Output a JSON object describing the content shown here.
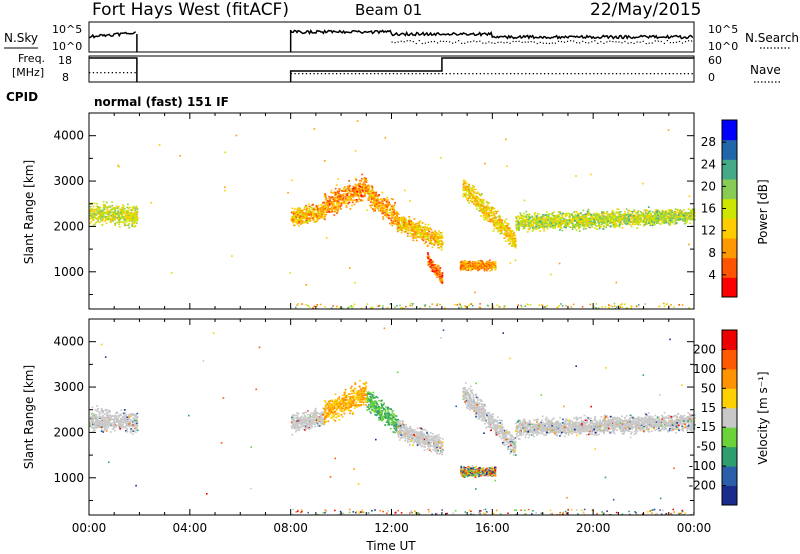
{
  "header": {
    "station": "Fort Hays West (fitACF)",
    "beam": "Beam 01",
    "date": "22/May/2015"
  },
  "noise_panel": {
    "left_label": "N.Sky",
    "right_label": "N.Search",
    "left_ticks": [
      "10^5",
      "10^0"
    ],
    "right_ticks": [
      "10^5",
      "10^0"
    ]
  },
  "freq_panel": {
    "left_label_1": "Freq.",
    "left_label_2": "[MHz]",
    "right_label": "Nave",
    "left_ticks": [
      "18",
      "8"
    ],
    "right_ticks": [
      "60",
      "0"
    ]
  },
  "cpid": {
    "label": "CPID",
    "mode": "normal (fast) 151 IF"
  },
  "power_colorbar": {
    "label": "Power [dB]",
    "ticks": [
      "28",
      "24",
      "20",
      "16",
      "12",
      "8",
      "4"
    ],
    "colors": [
      "#ff0000",
      "#ff5500",
      "#ff9900",
      "#ffcc00",
      "#cce600",
      "#88cc55",
      "#44aa88",
      "#2266aa",
      "#0000ff"
    ]
  },
  "velocity_colorbar": {
    "label": "Velocity [m s⁻¹]",
    "ticks": [
      "200",
      "100",
      "50",
      "15",
      "-15",
      "-50",
      "-100",
      "-200"
    ],
    "colors": [
      "#1a2b8c",
      "#2a5ea8",
      "#2f9e6e",
      "#6cd23a",
      "#c8c8c8",
      "#ffd000",
      "#ff9400",
      "#ff5a00",
      "#ee0000"
    ]
  },
  "x_axis": {
    "label": "Time UT",
    "ticks": [
      "00:00",
      "04:00",
      "08:00",
      "12:00",
      "16:00",
      "20:00",
      "00:00"
    ]
  },
  "chart_data": [
    {
      "type": "heatmap",
      "title": "",
      "xlabel": "Time UT",
      "ylabel": "Slant Range [km]",
      "colorbar_label": "Power [dB]",
      "xlim": [
        0,
        24
      ],
      "ylim": [
        180,
        4500
      ],
      "yticks": [
        1000,
        2000,
        3000,
        4000
      ],
      "color_range": [
        0,
        30
      ],
      "scatter_bands": [
        {
          "t_start": 0.0,
          "t_end": 1.9,
          "range_center": [
            2300,
            2250
          ],
          "width": 320,
          "level": 15
        },
        {
          "t_start": 8.0,
          "t_end": 9.3,
          "range_center": [
            2200,
            2350
          ],
          "width": 260,
          "level": 10
        },
        {
          "t_start": 9.3,
          "t_end": 11.0,
          "range_center": [
            2450,
            2900
          ],
          "width": 380,
          "level": 8
        },
        {
          "t_start": 11.0,
          "t_end": 12.2,
          "range_center": [
            2750,
            2200
          ],
          "width": 350,
          "level": 9
        },
        {
          "t_start": 12.2,
          "t_end": 14.0,
          "range_center": [
            2100,
            1700
          ],
          "width": 300,
          "level": 11
        },
        {
          "t_start": 13.4,
          "t_end": 14.0,
          "range_center": [
            1300,
            850
          ],
          "width": 200,
          "level": 6
        },
        {
          "t_start": 14.8,
          "t_end": 16.9,
          "range_center": [
            2900,
            1700
          ],
          "width": 320,
          "level": 12
        },
        {
          "t_start": 16.9,
          "t_end": 24.0,
          "range_center": [
            2100,
            2250
          ],
          "width": 260,
          "level": 16
        },
        {
          "t_start": 14.7,
          "t_end": 16.1,
          "range_center": [
            1150,
            1150
          ],
          "width": 150,
          "level": 9
        }
      ]
    },
    {
      "type": "heatmap",
      "title": "",
      "xlabel": "Time UT",
      "ylabel": "Slant Range [km]",
      "colorbar_label": "Velocity [m s⁻¹]",
      "xlim": [
        0,
        24
      ],
      "ylim": [
        180,
        4500
      ],
      "yticks": [
        1000,
        2000,
        3000,
        4000
      ],
      "color_range": [
        -250,
        250
      ],
      "scatter_bands": [
        {
          "t_start": 0.0,
          "t_end": 1.9,
          "range_center": [
            2300,
            2250
          ],
          "width": 320,
          "velocity": 0
        },
        {
          "t_start": 8.0,
          "t_end": 9.3,
          "range_center": [
            2200,
            2350
          ],
          "width": 260,
          "velocity": 0
        },
        {
          "t_start": 9.3,
          "t_end": 11.0,
          "range_center": [
            2450,
            2900
          ],
          "width": 380,
          "velocity": -40
        },
        {
          "t_start": 11.0,
          "t_end": 12.2,
          "range_center": [
            2750,
            2200
          ],
          "width": 350,
          "velocity": 30
        },
        {
          "t_start": 12.2,
          "t_end": 14.0,
          "range_center": [
            2100,
            1700
          ],
          "width": 300,
          "velocity": 10
        },
        {
          "t_start": 14.8,
          "t_end": 16.9,
          "range_center": [
            2900,
            1700
          ],
          "width": 320,
          "velocity": 0
        },
        {
          "t_start": 16.9,
          "t_end": 24.0,
          "range_center": [
            2100,
            2250
          ],
          "width": 260,
          "velocity": 0
        },
        {
          "t_start": 14.7,
          "t_end": 16.1,
          "range_center": [
            1150,
            1150
          ],
          "width": 150,
          "velocity": -20
        }
      ]
    }
  ]
}
